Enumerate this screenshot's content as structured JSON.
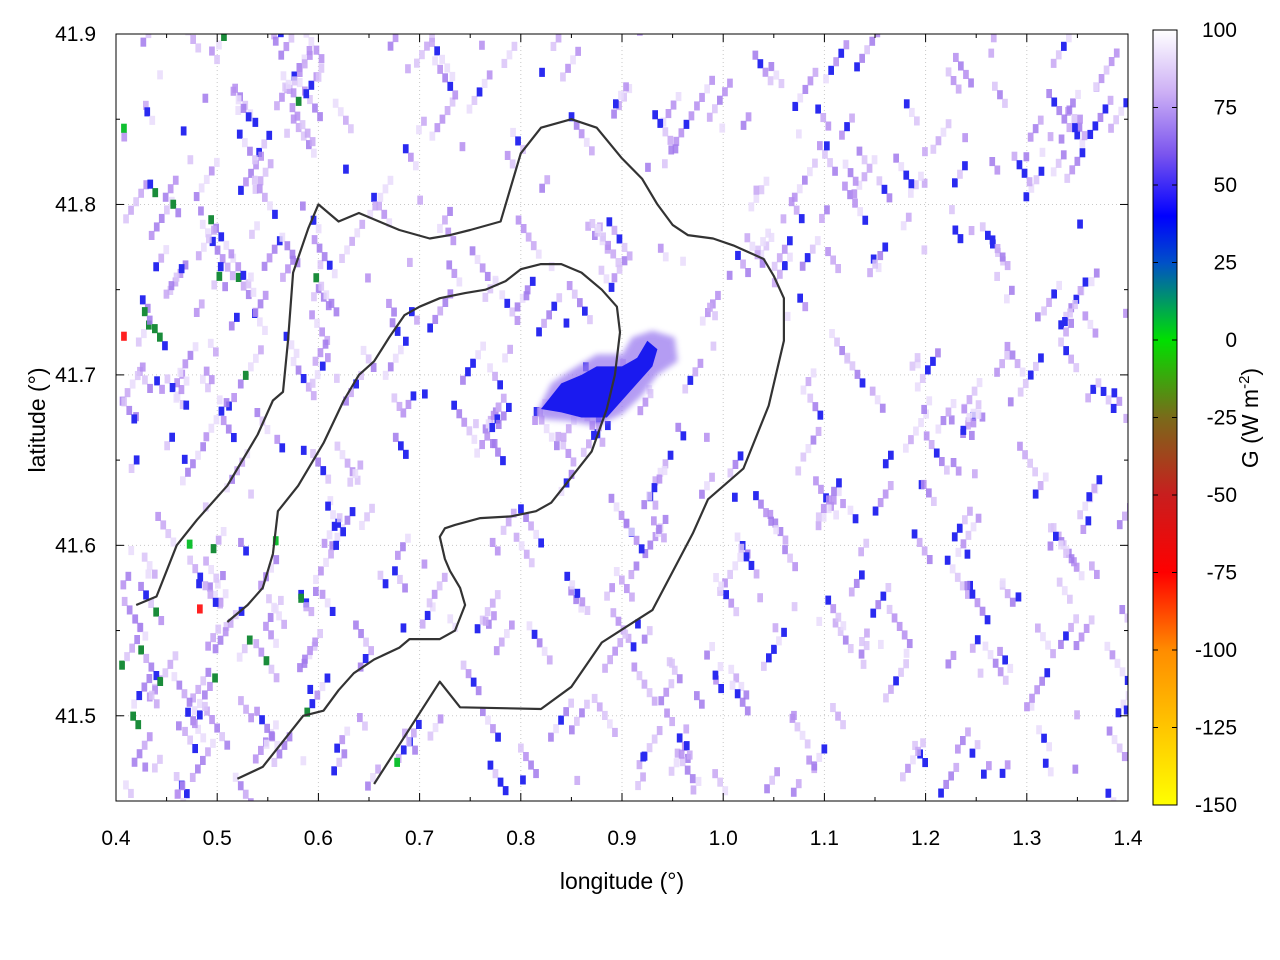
{
  "chart_data": {
    "type": "heatmap",
    "title": "",
    "xlabel": "longitude (°)",
    "ylabel": "latitude (°)",
    "xlim": [
      0.4,
      1.4
    ],
    "ylim": [
      41.45,
      41.9
    ],
    "x_ticks": [
      "0.4",
      "0.5",
      "0.6",
      "0.7",
      "0.8",
      "0.9",
      "1.0",
      "1.1",
      "1.2",
      "1.3",
      "1.4"
    ],
    "y_ticks": [
      "41.5",
      "41.6",
      "41.7",
      "41.8",
      "41.9"
    ],
    "grid": true,
    "colorbar": {
      "label": "G (W m-2)",
      "label_text": "G (W m",
      "label_superscript": "-2",
      "label_close": ")",
      "range": [
        -150,
        100
      ],
      "ticks": [
        "100",
        "75",
        "50",
        "25",
        "0",
        "-25",
        "-50",
        "-75",
        "-100",
        "-125",
        "-150"
      ],
      "stops": [
        {
          "value": -150,
          "color": "#ffff00"
        },
        {
          "value": -100,
          "color": "#ff8c00"
        },
        {
          "value": -75,
          "color": "#ff0000"
        },
        {
          "value": -50,
          "color": "#c81e1e"
        },
        {
          "value": -25,
          "color": "#7a6a1a"
        },
        {
          "value": 0,
          "color": "#00e000"
        },
        {
          "value": 25,
          "color": "#0050c8"
        },
        {
          "value": 40,
          "color": "#0000ff"
        },
        {
          "value": 60,
          "color": "#7b55ee"
        },
        {
          "value": 80,
          "color": "#cdb0f5"
        },
        {
          "value": 100,
          "color": "#ffffff"
        }
      ]
    },
    "blob": {
      "core": [
        [
          0.82,
          41.68
        ],
        [
          0.84,
          41.695
        ],
        [
          0.86,
          41.7
        ],
        [
          0.875,
          41.705
        ],
        [
          0.9,
          41.705
        ],
        [
          0.915,
          41.71
        ],
        [
          0.925,
          41.72
        ],
        [
          0.935,
          41.715
        ],
        [
          0.93,
          41.705
        ],
        [
          0.915,
          41.695
        ],
        [
          0.9,
          41.685
        ],
        [
          0.885,
          41.675
        ],
        [
          0.86,
          41.675
        ],
        [
          0.84,
          41.678
        ]
      ],
      "halo": [
        [
          0.815,
          41.677
        ],
        [
          0.83,
          41.695
        ],
        [
          0.85,
          41.703
        ],
        [
          0.875,
          41.712
        ],
        [
          0.9,
          41.712
        ],
        [
          0.91,
          41.722
        ],
        [
          0.93,
          41.726
        ],
        [
          0.952,
          41.722
        ],
        [
          0.955,
          41.708
        ],
        [
          0.935,
          41.7
        ],
        [
          0.92,
          41.688
        ],
        [
          0.9,
          41.677
        ],
        [
          0.875,
          41.67
        ],
        [
          0.845,
          41.673
        ],
        [
          0.823,
          41.674
        ]
      ]
    },
    "contours": [
      [
        [
          0.655,
          41.46
        ],
        [
          0.72,
          41.52
        ],
        [
          0.74,
          41.505
        ],
        [
          0.82,
          41.504
        ],
        [
          0.85,
          41.517
        ],
        [
          0.88,
          41.543
        ],
        [
          0.93,
          41.562
        ],
        [
          0.97,
          41.607
        ],
        [
          0.985,
          41.627
        ],
        [
          1.02,
          41.645
        ],
        [
          1.045,
          41.682
        ],
        [
          1.06,
          41.72
        ],
        [
          1.06,
          41.745
        ],
        [
          1.05,
          41.758
        ],
        [
          1.04,
          41.768
        ],
        [
          1.01,
          41.776
        ],
        [
          0.99,
          41.78
        ],
        [
          0.965,
          41.782
        ],
        [
          0.95,
          41.788
        ],
        [
          0.935,
          41.8
        ],
        [
          0.92,
          41.815
        ],
        [
          0.9,
          41.827
        ],
        [
          0.875,
          41.845
        ],
        [
          0.85,
          41.85
        ],
        [
          0.82,
          41.845
        ],
        [
          0.8,
          41.83
        ],
        [
          0.78,
          41.79
        ],
        [
          0.75,
          41.785
        ],
        [
          0.73,
          41.782
        ],
        [
          0.71,
          41.78
        ],
        [
          0.68,
          41.785
        ],
        [
          0.66,
          41.79
        ],
        [
          0.64,
          41.795
        ],
        [
          0.62,
          41.79
        ],
        [
          0.6,
          41.8
        ],
        [
          0.59,
          41.786
        ],
        [
          0.575,
          41.76
        ],
        [
          0.57,
          41.72
        ],
        [
          0.565,
          41.69
        ],
        [
          0.555,
          41.685
        ],
        [
          0.54,
          41.665
        ],
        [
          0.51,
          41.635
        ],
        [
          0.48,
          41.615
        ],
        [
          0.46,
          41.6
        ],
        [
          0.44,
          41.57
        ],
        [
          0.42,
          41.565
        ]
      ],
      [
        [
          0.52,
          41.463
        ],
        [
          0.545,
          41.47
        ],
        [
          0.565,
          41.485
        ],
        [
          0.585,
          41.5
        ],
        [
          0.605,
          41.503
        ],
        [
          0.62,
          41.515
        ],
        [
          0.635,
          41.525
        ],
        [
          0.655,
          41.533
        ],
        [
          0.68,
          41.54
        ],
        [
          0.69,
          41.545
        ],
        [
          0.72,
          41.545
        ],
        [
          0.735,
          41.55
        ],
        [
          0.745,
          41.565
        ],
        [
          0.74,
          41.575
        ],
        [
          0.73,
          41.585
        ],
        [
          0.725,
          41.592
        ],
        [
          0.72,
          41.605
        ],
        [
          0.725,
          41.61
        ],
        [
          0.735,
          41.612
        ],
        [
          0.76,
          41.616
        ],
        [
          0.79,
          41.617
        ],
        [
          0.815,
          41.62
        ],
        [
          0.83,
          41.625
        ],
        [
          0.85,
          41.64
        ],
        [
          0.87,
          41.655
        ],
        [
          0.885,
          41.68
        ],
        [
          0.893,
          41.7
        ],
        [
          0.898,
          41.725
        ],
        [
          0.895,
          41.74
        ],
        [
          0.88,
          41.75
        ],
        [
          0.86,
          41.76
        ],
        [
          0.84,
          41.765
        ],
        [
          0.82,
          41.765
        ],
        [
          0.8,
          41.762
        ],
        [
          0.785,
          41.755
        ],
        [
          0.765,
          41.75
        ],
        [
          0.745,
          41.748
        ],
        [
          0.72,
          41.745
        ],
        [
          0.7,
          41.74
        ],
        [
          0.685,
          41.735
        ],
        [
          0.67,
          41.722
        ],
        [
          0.655,
          41.708
        ],
        [
          0.64,
          41.7
        ],
        [
          0.625,
          41.685
        ],
        [
          0.605,
          41.66
        ],
        [
          0.58,
          41.635
        ],
        [
          0.56,
          41.62
        ],
        [
          0.555,
          41.595
        ],
        [
          0.545,
          41.575
        ],
        [
          0.53,
          41.565
        ],
        [
          0.51,
          41.555
        ]
      ]
    ]
  }
}
